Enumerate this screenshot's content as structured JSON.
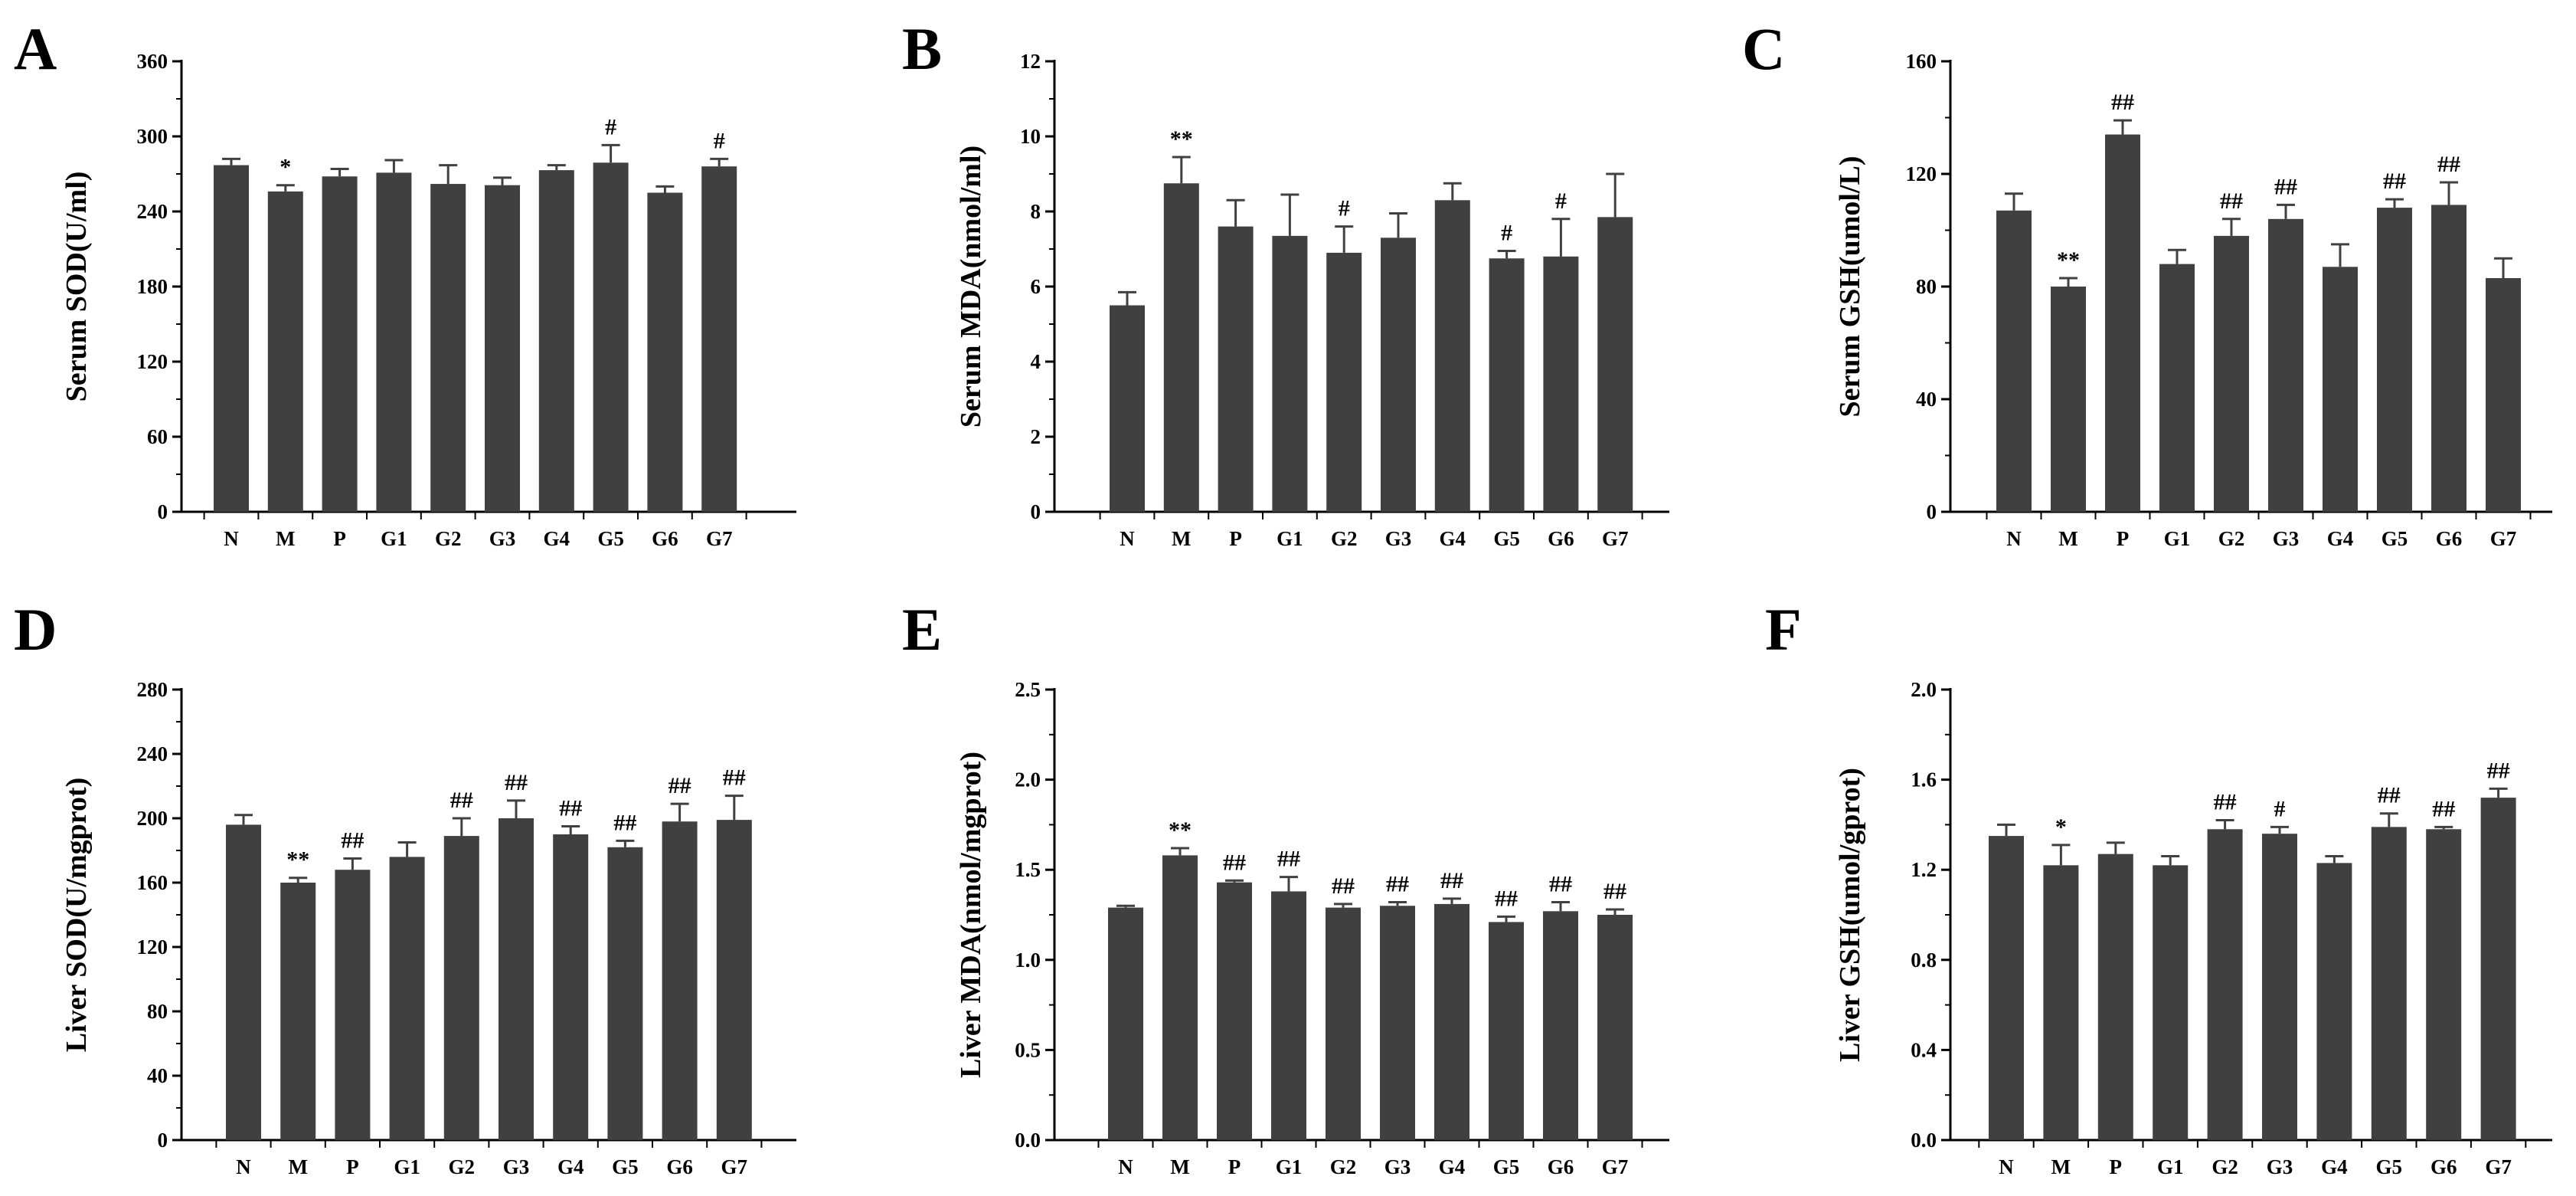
{
  "figure": {
    "bar_color": "#404040",
    "axis_color": "#000000"
  },
  "chart_data": [
    {
      "type": "bar",
      "panel": "A",
      "ylabel": "Serum SOD(U/ml)",
      "xlabel": "",
      "categories": [
        "N",
        "M",
        "P",
        "G1",
        "G2",
        "G3",
        "G4",
        "G5",
        "G6",
        "G7"
      ],
      "values": [
        277,
        256,
        268,
        271,
        262,
        261,
        273,
        279,
        255,
        276
      ],
      "errors": [
        5,
        5,
        6,
        10,
        15,
        6,
        4,
        14,
        5,
        6
      ],
      "annotations": [
        "",
        "*",
        "",
        "",
        "",
        "",
        "",
        "#",
        "",
        "#"
      ],
      "ylim": [
        0,
        360
      ],
      "yticks": [
        0,
        60,
        120,
        180,
        240,
        300,
        360
      ]
    },
    {
      "type": "bar",
      "panel": "B",
      "ylabel": "Serum MDA(nmol/ml)",
      "xlabel": "",
      "categories": [
        "N",
        "M",
        "P",
        "G1",
        "G2",
        "G3",
        "G4",
        "G5",
        "G6",
        "G7"
      ],
      "values": [
        5.5,
        8.75,
        7.6,
        7.35,
        6.9,
        7.3,
        8.3,
        6.75,
        6.8,
        7.85
      ],
      "errors": [
        0.35,
        0.7,
        0.7,
        1.1,
        0.7,
        0.65,
        0.45,
        0.2,
        1.0,
        1.15
      ],
      "annotations": [
        "",
        "**",
        "",
        "",
        "#",
        "",
        "",
        "#",
        "#",
        ""
      ],
      "ylim": [
        0,
        12
      ],
      "yticks": [
        0,
        2,
        4,
        6,
        8,
        10,
        12
      ]
    },
    {
      "type": "bar",
      "panel": "C",
      "ylabel": "Serum GSH(umol/L)",
      "xlabel": "",
      "categories": [
        "N",
        "M",
        "P",
        "G1",
        "G2",
        "G3",
        "G4",
        "G5",
        "G6",
        "G7"
      ],
      "values": [
        107,
        80,
        134,
        88,
        98,
        104,
        87,
        108,
        109,
        83
      ],
      "errors": [
        6,
        3,
        5,
        5,
        6,
        5,
        8,
        3,
        8,
        7
      ],
      "annotations": [
        "",
        "**",
        "##",
        "",
        "##",
        "##",
        "",
        "##",
        "##",
        ""
      ],
      "ylim": [
        0,
        160
      ],
      "yticks": [
        0,
        40,
        80,
        120,
        160
      ]
    },
    {
      "type": "bar",
      "panel": "D",
      "ylabel": "Liver SOD(U/mgprot)",
      "xlabel": "",
      "categories": [
        "N",
        "M",
        "P",
        "G1",
        "G2",
        "G3",
        "G4",
        "G5",
        "G6",
        "G7"
      ],
      "values": [
        196,
        160,
        168,
        176,
        189,
        200,
        190,
        182,
        198,
        199
      ],
      "errors": [
        6,
        3,
        7,
        9,
        11,
        11,
        5,
        4,
        11,
        15
      ],
      "annotations": [
        "",
        "**",
        "##",
        "",
        "##",
        "##",
        "##",
        "##",
        "##",
        "##"
      ],
      "ylim": [
        0,
        280
      ],
      "yticks": [
        0,
        40,
        80,
        120,
        160,
        200,
        240,
        280
      ]
    },
    {
      "type": "bar",
      "panel": "E",
      "ylabel": "Liver MDA(nmol/mgprot)",
      "xlabel": "",
      "categories": [
        "N",
        "M",
        "P",
        "G1",
        "G2",
        "G3",
        "G4",
        "G5",
        "G6",
        "G7"
      ],
      "values": [
        1.29,
        1.58,
        1.43,
        1.38,
        1.29,
        1.3,
        1.31,
        1.21,
        1.27,
        1.25
      ],
      "errors": [
        0.01,
        0.04,
        0.01,
        0.08,
        0.02,
        0.02,
        0.03,
        0.03,
        0.05,
        0.03
      ],
      "annotations": [
        "",
        "**",
        "##",
        "##",
        "##",
        "##",
        "##",
        "##",
        "##",
        "##"
      ],
      "ylim": [
        0,
        2.5
      ],
      "yticks": [
        0.0,
        0.5,
        1.0,
        1.5,
        2.0,
        2.5
      ]
    },
    {
      "type": "bar",
      "panel": "F",
      "ylabel": "Liver GSH(umol/gprot)",
      "xlabel": "",
      "categories": [
        "N",
        "M",
        "P",
        "G1",
        "G2",
        "G3",
        "G4",
        "G5",
        "G6",
        "G7"
      ],
      "values": [
        1.35,
        1.22,
        1.27,
        1.22,
        1.38,
        1.36,
        1.23,
        1.39,
        1.38,
        1.52
      ],
      "errors": [
        0.05,
        0.09,
        0.05,
        0.04,
        0.04,
        0.03,
        0.03,
        0.06,
        0.01,
        0.04
      ],
      "annotations": [
        "",
        "*",
        "",
        "",
        "##",
        "#",
        "",
        "##",
        "##",
        "##"
      ],
      "ylim": [
        0,
        2.0
      ],
      "yticks": [
        0.0,
        0.4,
        0.8,
        1.2,
        1.6,
        2.0
      ]
    }
  ]
}
